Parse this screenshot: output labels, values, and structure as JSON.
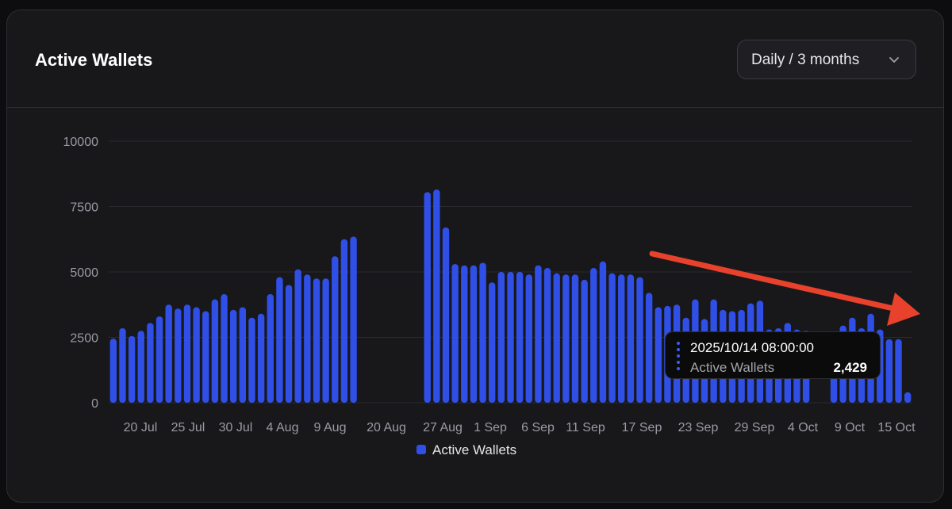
{
  "card": {
    "title": "Active Wallets",
    "range_select": {
      "selected": "Daily / 3 months",
      "icon": "chevron-down-icon"
    }
  },
  "colors": {
    "bar": "#2f4fe6",
    "annotation_arrow": "#e8412c",
    "tooltip_marker": "#3d5cf5"
  },
  "chart_data": {
    "type": "bar",
    "title": "Active Wallets",
    "xlabel": "",
    "ylabel": "",
    "ylim": [
      0,
      10000
    ],
    "yticks": [
      "10000",
      "7500",
      "5000",
      "2500",
      "0"
    ],
    "grid": true,
    "legend": {
      "position": "bottom-center",
      "entries": [
        "Active Wallets"
      ]
    },
    "x_tick_labels": [
      "20 Jul",
      "25 Jul",
      "30 Jul",
      "4 Aug",
      "9 Aug",
      "20 Aug",
      "27 Aug",
      "1 Sep",
      "6 Sep",
      "11 Sep",
      "17 Sep",
      "23 Sep",
      "29 Sep",
      "4 Oct",
      "9 Oct",
      "15 Oct"
    ],
    "series": [
      {
        "name": "Active Wallets",
        "values": [
          2450,
          2850,
          2550,
          2750,
          3050,
          3300,
          3750,
          3600,
          3750,
          3650,
          3500,
          3950,
          4150,
          3550,
          3650,
          3250,
          3400,
          4150,
          4800,
          4500,
          5100,
          4900,
          4750,
          4750,
          5600,
          6250,
          6350,
          0,
          0,
          0,
          0,
          0,
          0,
          0,
          8050,
          8150,
          6700,
          5300,
          5250,
          5250,
          5350,
          4600,
          5000,
          5000,
          5000,
          4900,
          5250,
          5150,
          4950,
          4900,
          4900,
          4700,
          5150,
          5400,
          4950,
          4900,
          4900,
          4800,
          4200,
          3650,
          3700,
          3750,
          3250,
          3950,
          3200,
          3950,
          3550,
          3500,
          3550,
          3800,
          3900,
          2800,
          2850,
          3050,
          2800,
          2750,
          0,
          0,
          2550,
          2950,
          3250,
          2850,
          3400,
          2800,
          2429,
          2429,
          400
        ]
      }
    ],
    "tooltip": {
      "date": "2025/10/14 08:00:00",
      "series": "Active Wallets",
      "value": "2,429"
    },
    "annotation": "red arrow pointing down-right at the latest bars"
  }
}
